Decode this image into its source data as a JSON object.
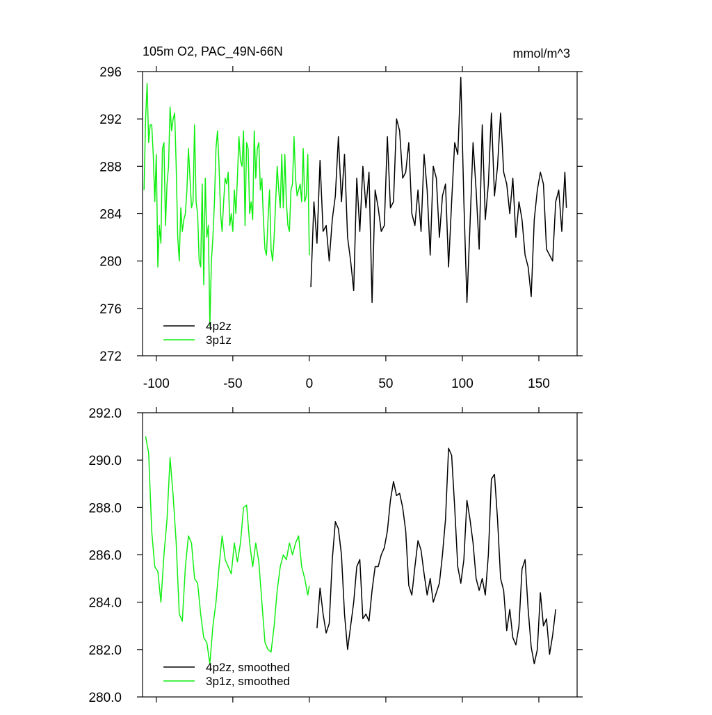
{
  "chart_data": [
    {
      "type": "line",
      "title": "105m O2, PAC_49N-66N",
      "annotation": "mmol/m^3",
      "xlim": [
        -109,
        175
      ],
      "xticks": [
        -100,
        -50,
        0,
        50,
        100,
        150
      ],
      "show_xtick_labels": true,
      "ylim": [
        272,
        296
      ],
      "yticks": [
        272,
        276,
        280,
        284,
        288,
        292,
        296
      ],
      "legend": "lower left",
      "series": [
        {
          "name": "4p2z",
          "color": "#000000",
          "x": [
            1,
            3,
            5,
            7,
            9,
            11,
            13,
            15,
            17,
            19,
            21,
            23,
            25,
            27,
            29,
            31,
            33,
            35,
            37,
            39,
            41,
            43,
            45,
            47,
            49,
            51,
            53,
            55,
            57,
            59,
            61,
            63,
            65,
            67,
            69,
            71,
            73,
            75,
            77,
            79,
            81,
            83,
            85,
            87,
            89,
            91,
            93,
            95,
            97,
            99,
            101,
            103,
            105,
            107,
            109,
            111,
            113,
            115,
            117,
            119,
            121,
            123,
            125,
            127,
            129,
            131,
            133,
            135,
            137,
            139,
            141,
            143,
            145,
            147,
            149,
            151,
            153,
            155,
            157,
            159,
            161,
            163,
            165,
            167,
            168
          ],
          "values": [
            277.8,
            285,
            281.5,
            288.5,
            282.5,
            283,
            280,
            283.5,
            285.5,
            290.5,
            285,
            289,
            282,
            280,
            277.5,
            287,
            282.5,
            288,
            284.5,
            287.5,
            276.5,
            286,
            284.5,
            282.5,
            283,
            290.5,
            284.5,
            285,
            292,
            291,
            287,
            287.5,
            290,
            284,
            283,
            286,
            282.5,
            289,
            286,
            280.5,
            288,
            287,
            282,
            285.5,
            286.5,
            279.5,
            285,
            290,
            289,
            295.5,
            285,
            276.5,
            283,
            290,
            286,
            281,
            291.5,
            283.5,
            286.5,
            292.5,
            285.5,
            288,
            292.5,
            287.5,
            286.5,
            284,
            287,
            282,
            285,
            283.5,
            280.5,
            279.5,
            277,
            283.5,
            286,
            287.5,
            286.5,
            281,
            280.5,
            280,
            285,
            286,
            282.5,
            287.5,
            284.5
          ]
        },
        {
          "name": "3p1z",
          "color": "#11ee11",
          "x": [
            -108,
            -107,
            -106,
            -105,
            -104,
            -103,
            -102,
            -101,
            -100,
            -99,
            -98,
            -97,
            -96,
            -95,
            -94,
            -93,
            -92,
            -91,
            -90,
            -89,
            -88,
            -87,
            -86,
            -85,
            -84,
            -83,
            -82,
            -81,
            -80,
            -79,
            -78,
            -77,
            -76,
            -75,
            -74,
            -73,
            -72,
            -71,
            -70,
            -69,
            -68,
            -67,
            -66,
            -65,
            -64,
            -63,
            -62,
            -61,
            -60,
            -59,
            -58,
            -57,
            -56,
            -55,
            -54,
            -53,
            -52,
            -51,
            -50,
            -49,
            -48,
            -47,
            -46,
            -45,
            -44,
            -43,
            -42,
            -41,
            -40,
            -39,
            -38,
            -37,
            -36,
            -35,
            -34,
            -33,
            -32,
            -31,
            -30,
            -29,
            -28,
            -27,
            -26,
            -25,
            -24,
            -23,
            -22,
            -21,
            -20,
            -19,
            -18,
            -17,
            -16,
            -15,
            -14,
            -13,
            -12,
            -11,
            -10,
            -9,
            -8,
            -7,
            -6,
            -5,
            -4,
            -3,
            -2,
            -1,
            0
          ],
          "values": [
            286,
            292,
            295,
            290,
            291.5,
            291.5,
            289,
            285,
            289,
            279.5,
            283,
            281.5,
            289.5,
            290,
            283,
            286.5,
            288,
            293,
            291,
            292,
            292.5,
            288,
            282,
            280,
            284.5,
            282.5,
            283.5,
            284,
            286,
            289.5,
            287,
            284.5,
            285,
            291.5,
            285,
            284,
            280,
            279.5,
            286.5,
            278,
            287,
            282,
            283,
            274.5,
            280,
            282,
            285,
            289.5,
            291,
            288,
            284,
            282.5,
            285,
            287,
            286.5,
            287.5,
            283,
            284,
            282.5,
            286,
            284,
            287,
            290.5,
            288.5,
            288,
            291,
            283,
            290,
            289.5,
            284,
            285,
            283.5,
            291,
            287,
            289.5,
            290,
            286,
            287,
            283.5,
            281,
            280.5,
            283.5,
            286,
            281,
            280,
            282,
            285,
            288,
            286,
            284.5,
            289,
            284.5,
            289,
            285,
            283,
            282.5,
            286,
            286.5,
            290.5,
            287,
            285.5,
            286,
            286.5,
            285,
            289.5,
            285,
            285.5,
            289,
            280.5
          ]
        }
      ]
    },
    {
      "type": "line",
      "xlim": [
        -109,
        175
      ],
      "xticks": [
        -100,
        -50,
        0,
        50,
        100,
        150
      ],
      "show_xtick_labels": false,
      "ylim": [
        280,
        292
      ],
      "yticks": [
        {
          "value": 280,
          "label": "280.0"
        },
        {
          "value": 282,
          "label": "282.0"
        },
        {
          "value": 284,
          "label": "284.0"
        },
        {
          "value": 286,
          "label": "286.0"
        },
        {
          "value": 288,
          "label": "288.0"
        },
        {
          "value": 290,
          "label": "290.0"
        },
        {
          "value": 292,
          "label": "292.0"
        }
      ],
      "legend": "lower left",
      "series": [
        {
          "name": "4p2z, smoothed",
          "color": "#000000",
          "x": [
            5,
            7,
            9,
            11,
            13,
            15,
            17,
            19,
            21,
            23,
            25,
            27,
            29,
            31,
            33,
            35,
            37,
            39,
            41,
            43,
            45,
            47,
            49,
            51,
            53,
            55,
            57,
            59,
            61,
            63,
            65,
            67,
            69,
            71,
            73,
            75,
            77,
            79,
            81,
            83,
            85,
            87,
            89,
            91,
            93,
            95,
            97,
            99,
            101,
            103,
            105,
            107,
            109,
            111,
            113,
            115,
            117,
            119,
            121,
            123,
            125,
            127,
            129,
            131,
            133,
            135,
            137,
            139,
            141,
            143,
            145,
            147,
            149,
            151,
            153,
            155,
            157,
            159,
            161
          ],
          "values": [
            282.9,
            284.6,
            283.5,
            282.7,
            283.1,
            285.8,
            287.4,
            287.1,
            286,
            283.5,
            282,
            283,
            284,
            285.5,
            285.8,
            283.3,
            283.5,
            283.2,
            284.5,
            285.5,
            285.5,
            286,
            286.3,
            287,
            288.3,
            289.1,
            288.5,
            288.6,
            288,
            287,
            284.7,
            284.3,
            285.5,
            286.6,
            286.2,
            285.2,
            284.3,
            285,
            284,
            284.4,
            284.8,
            286,
            287.5,
            290.5,
            290.2,
            288,
            285.5,
            284.8,
            285.8,
            288.3,
            287.5,
            286.5,
            285,
            284.5,
            285,
            284.3,
            286,
            289.2,
            289.4,
            287.5,
            285,
            284.5,
            282.8,
            283.7,
            282.5,
            282.2,
            283,
            285.4,
            285.8,
            283.7,
            282.1,
            281.4,
            282,
            284.4,
            283,
            283.3,
            281.8,
            282.6,
            283.7
          ]
        },
        {
          "name": "3p1z, smoothed",
          "color": "#11ee11",
          "x": [
            -107,
            -105,
            -103,
            -101,
            -99,
            -97,
            -95,
            -93,
            -91,
            -89,
            -87,
            -85,
            -83,
            -81,
            -79,
            -77,
            -75,
            -73,
            -71,
            -69,
            -67,
            -65,
            -63,
            -61,
            -59,
            -57,
            -55,
            -53,
            -51,
            -49,
            -47,
            -45,
            -43,
            -41,
            -39,
            -37,
            -35,
            -33,
            -31,
            -29,
            -27,
            -25,
            -23,
            -21,
            -19,
            -17,
            -15,
            -13,
            -11,
            -9,
            -7,
            -5,
            -3,
            -1,
            0
          ],
          "values": [
            291,
            290.3,
            287,
            285.5,
            285.3,
            284,
            286,
            287.5,
            290.1,
            288.5,
            286.5,
            283.5,
            283.2,
            285.5,
            286.8,
            286.5,
            285,
            284.8,
            283.5,
            282.5,
            282.3,
            281.4,
            283,
            284,
            285.5,
            286.8,
            285.8,
            285.5,
            285.2,
            286.5,
            285.7,
            286.5,
            288,
            288.1,
            286.5,
            285.5,
            286.5,
            285.7,
            284,
            282.3,
            282,
            281.9,
            283,
            284.5,
            285.5,
            286,
            285.8,
            286.5,
            286,
            286.5,
            286.8,
            285.5,
            285,
            284.3,
            284.7
          ]
        }
      ]
    }
  ]
}
